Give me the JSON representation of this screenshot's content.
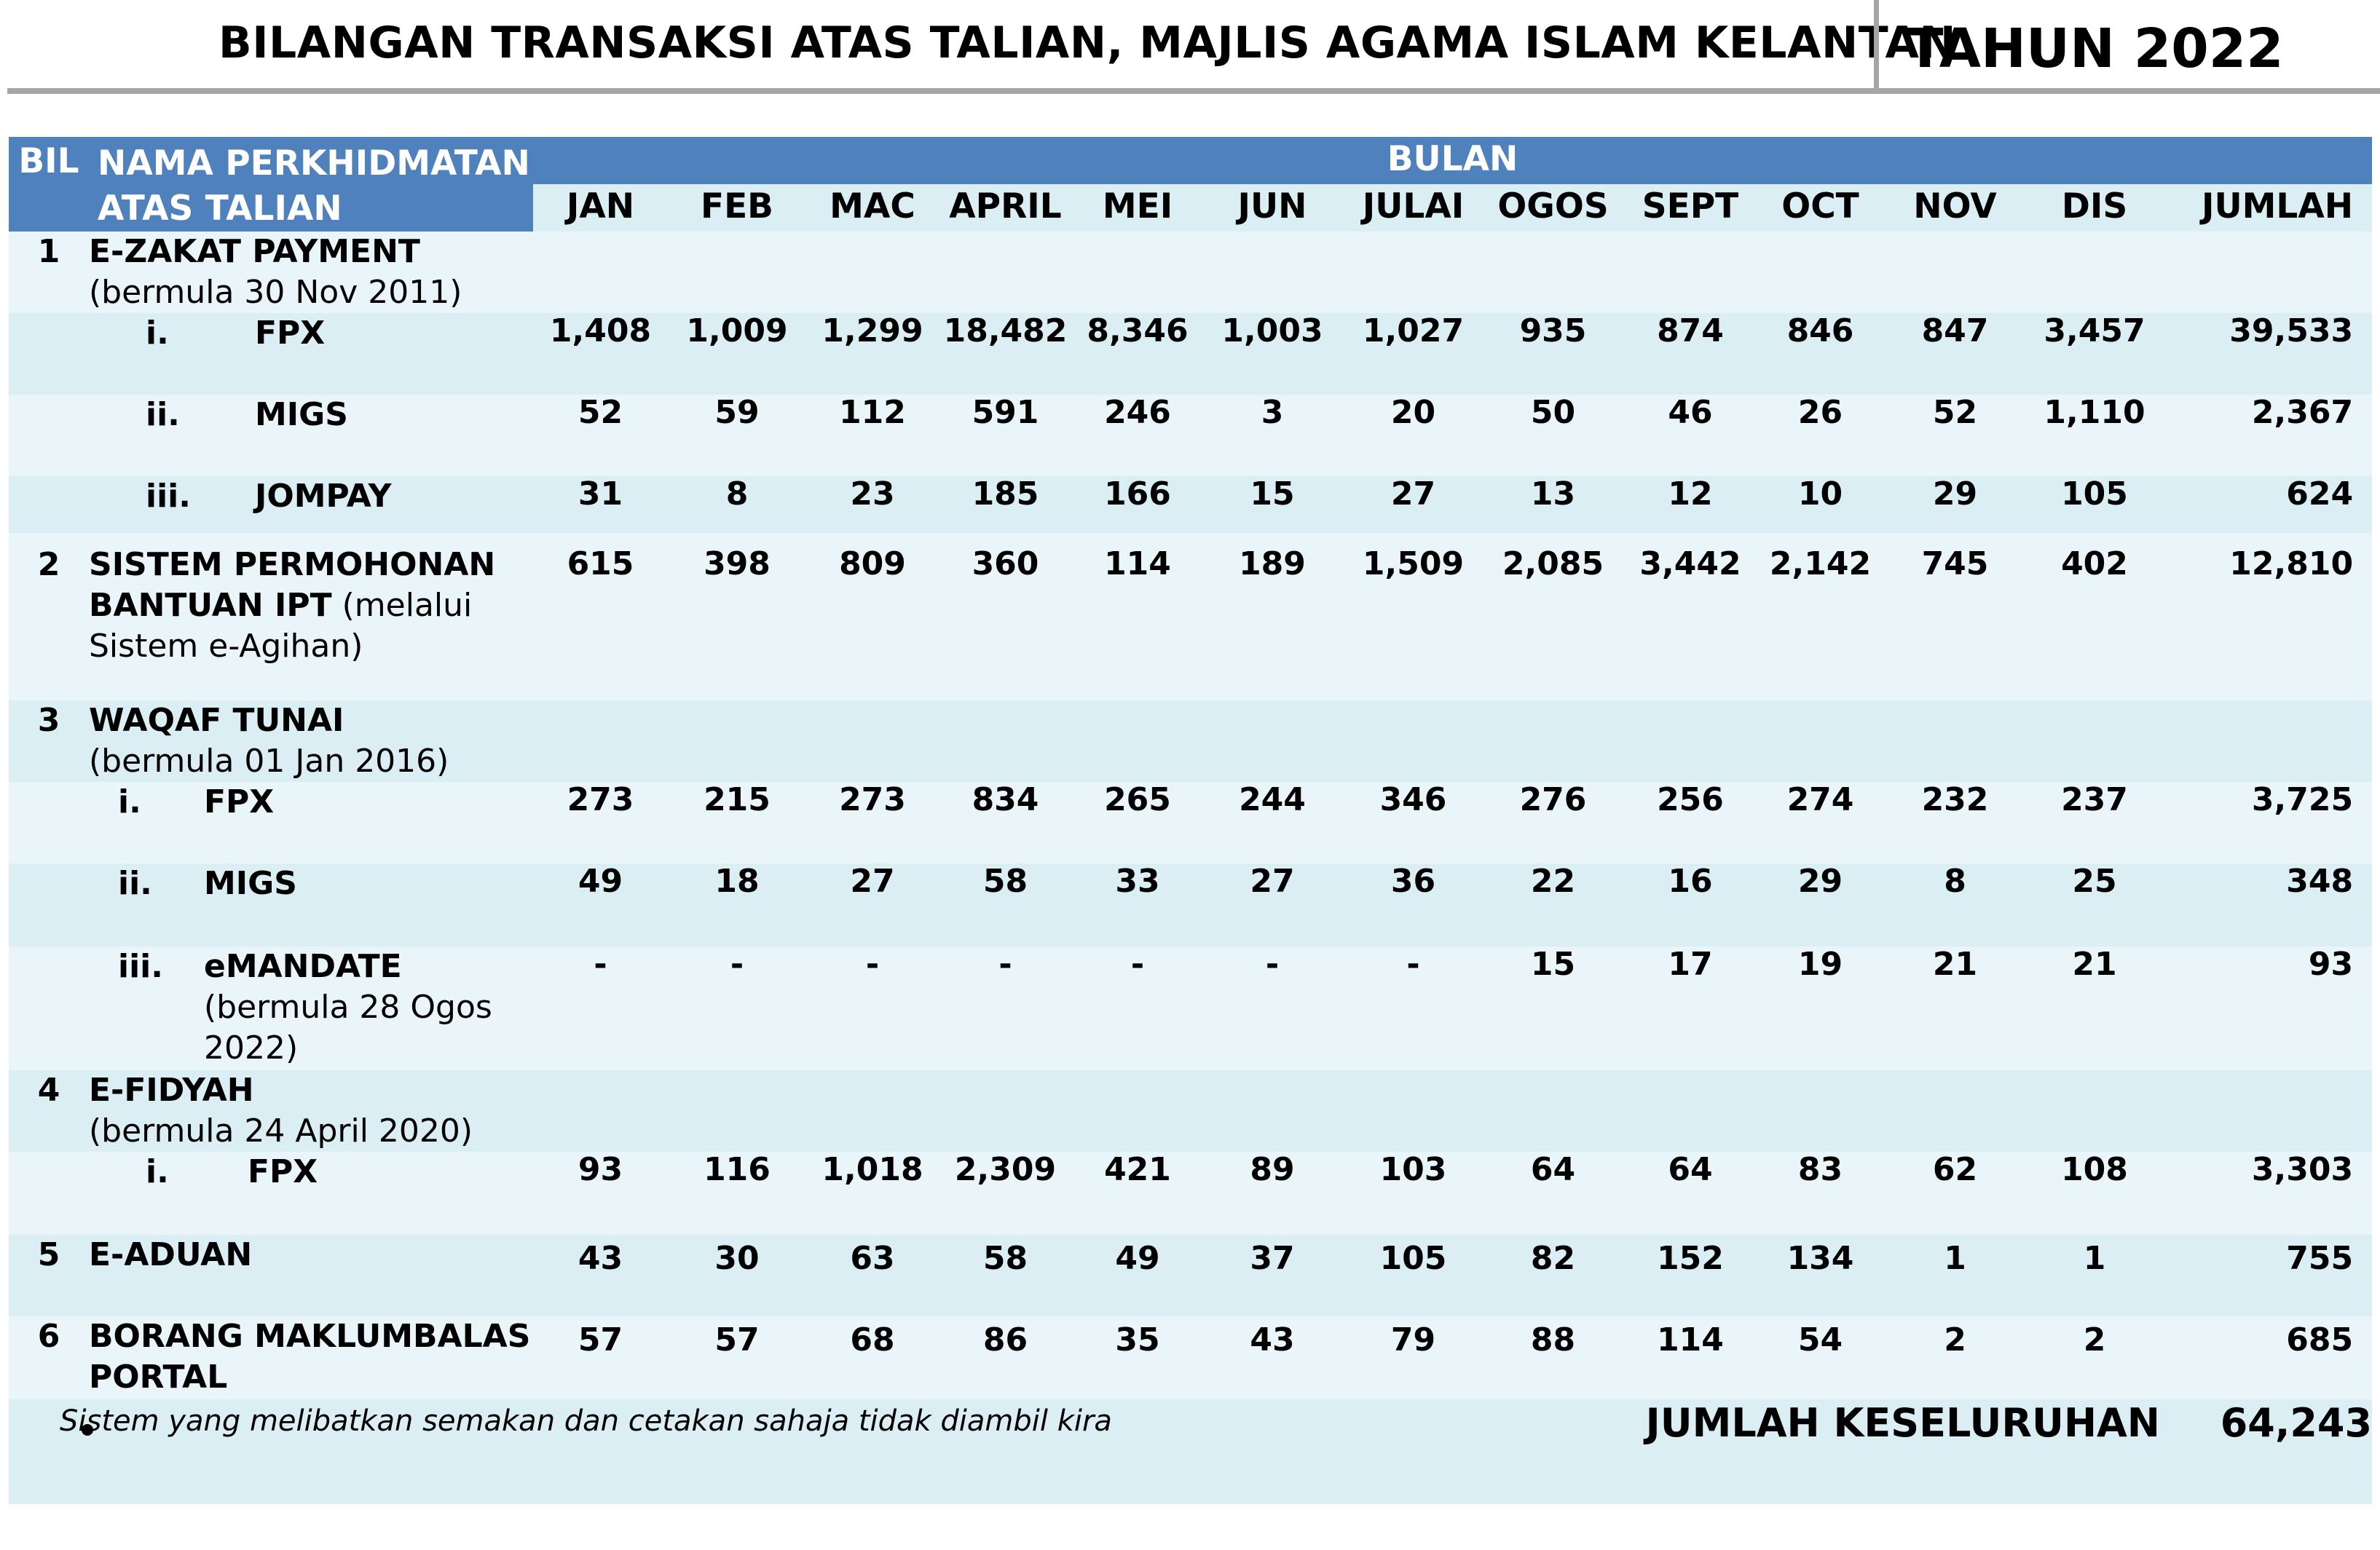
{
  "header": {
    "title": "BILANGAN  TRANSAKSI ATAS TALIAN, MAJLIS AGAMA ISLAM KELANTAN",
    "year": "TAHUN 2022"
  },
  "table": {
    "col_bil": "BIL",
    "col_nama_line1": "NAMA PERKHIDMATAN",
    "col_nama_line2": "ATAS TALIAN",
    "col_bulan": "BULAN",
    "months": [
      "JAN",
      "FEB",
      "MAC",
      "APRIL",
      "MEI",
      "JUN",
      "JULAI",
      "OGOS",
      "SEPT",
      "OCT",
      "NOV",
      "DIS",
      "JUMLAH"
    ],
    "rows": [
      {
        "bil": "1",
        "name": "E-ZAKAT PAYMENT",
        "note": "(bermula 30 Nov 2011)"
      },
      {
        "roman": "i.",
        "sub": "FPX",
        "values": [
          "1,408",
          "1,009",
          "1,299",
          "18,482",
          "8,346",
          "1,003",
          "1,027",
          "935",
          "874",
          "846",
          "847",
          "3,457",
          "39,533"
        ]
      },
      {
        "roman": "ii.",
        "sub": "MIGS",
        "values": [
          "52",
          "59",
          "112",
          "591",
          "246",
          "3",
          "20",
          "50",
          "46",
          "26",
          "52",
          "1,110",
          "2,367"
        ]
      },
      {
        "roman": "iii.",
        "sub": "JOMPAY",
        "values": [
          "31",
          "8",
          "23",
          "185",
          "166",
          "15",
          "27",
          "13",
          "12",
          "10",
          "29",
          "105",
          "624"
        ]
      },
      {
        "bil": "2",
        "name_line1": "SISTEM PERMOHONAN",
        "name_line2": "BANTUAN IPT",
        "name_line2_extra": " (melalui",
        "name_line3": "Sistem e-Agihan)",
        "values": [
          "615",
          "398",
          "809",
          "360",
          "114",
          "189",
          "1,509",
          "2,085",
          "3,442",
          "2,142",
          "745",
          "402",
          "12,810"
        ]
      },
      {
        "bil": "3",
        "name": "WAQAF TUNAI",
        "note": "(bermula 01 Jan 2016)"
      },
      {
        "roman": "i.",
        "sub": "FPX",
        "values": [
          "273",
          "215",
          "273",
          "834",
          "265",
          "244",
          "346",
          "276",
          "256",
          "274",
          "232",
          "237",
          "3,725"
        ]
      },
      {
        "roman": "ii.",
        "sub": "MIGS",
        "values": [
          "49",
          "18",
          "27",
          "58",
          "33",
          "27",
          "36",
          "22",
          "16",
          "29",
          "8",
          "25",
          "348"
        ]
      },
      {
        "roman": "iii.",
        "sub": "eMANDATE",
        "sub_note_line1": "(bermula 28 Ogos",
        "sub_note_line2": "2022)",
        "values": [
          "-",
          "-",
          "-",
          "-",
          "-",
          "-",
          "-",
          "15",
          "17",
          "19",
          "21",
          "21",
          "93"
        ]
      },
      {
        "bil": "4",
        "name": "E-FIDYAH",
        "note": "(bermula  24 April 2020)"
      },
      {
        "roman": "i.",
        "sub": "FPX",
        "values": [
          "93",
          "116",
          "1,018",
          "2,309",
          "421",
          "89",
          "103",
          "64",
          "64",
          "83",
          "62",
          "108",
          "3,303"
        ]
      },
      {
        "bil": "5",
        "name": "E-ADUAN",
        "values": [
          "43",
          "30",
          "63",
          "58",
          "49",
          "37",
          "105",
          "82",
          "152",
          "134",
          "1",
          "1",
          "755"
        ]
      },
      {
        "bil": "6",
        "name_line1": "BORANG MAKLUMBALAS",
        "name_line2": "PORTAL",
        "values": [
          "57",
          "57",
          "68",
          "86",
          "35",
          "43",
          "79",
          "88",
          "114",
          "54",
          "2",
          "2",
          "685"
        ]
      }
    ],
    "footer": {
      "note": "Sistem yang melibatkan semakan dan cetakan sahaja tidak diambil kira",
      "total_label": "JUMLAH KESELURUHAN",
      "total_value": "64,243"
    }
  }
}
